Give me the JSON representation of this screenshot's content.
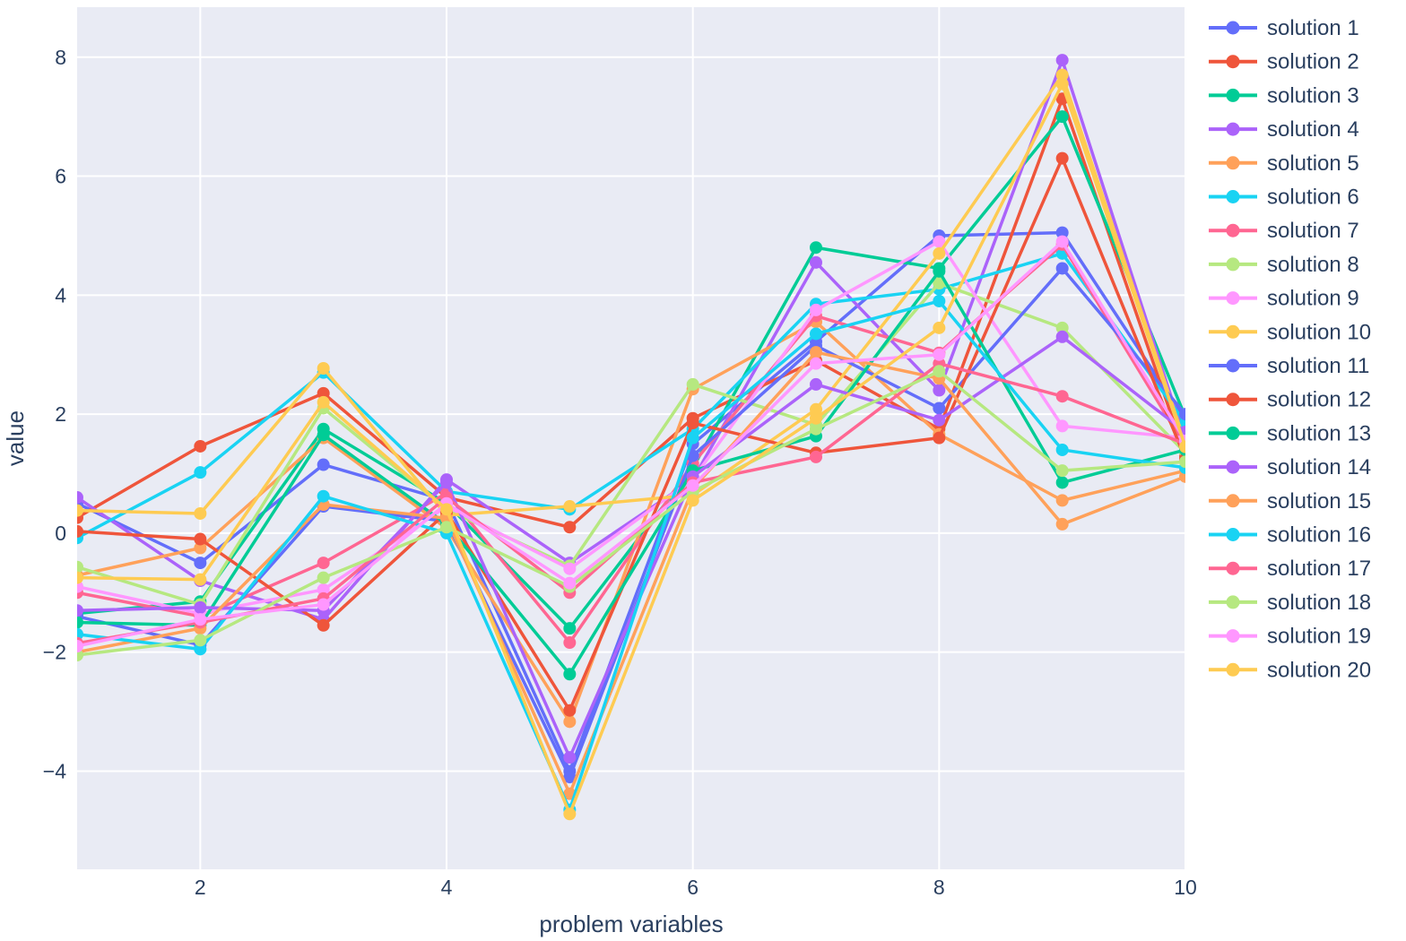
{
  "figure": {
    "background_color": "#ffffff",
    "plot_background": "#E9EBF4",
    "grid_color": "#FFFFFF",
    "text_color": "#2a3f5f",
    "xaxis": {
      "title": "problem variables",
      "tick_labels": [
        "2",
        "4",
        "6",
        "8",
        "10"
      ],
      "tick_values": [
        2,
        4,
        6,
        8,
        10
      ]
    },
    "yaxis": {
      "title": "value",
      "tick_labels": [
        "−4",
        "−2",
        "0",
        "2",
        "4",
        "6",
        "8"
      ],
      "tick_values": [
        -4,
        -2,
        0,
        2,
        4,
        6,
        8
      ]
    }
  },
  "chart_data": {
    "type": "line",
    "title": "",
    "xlabel": "problem variables",
    "ylabel": "value",
    "x": [
      1,
      2,
      3,
      4,
      5,
      6,
      7,
      8,
      9,
      10
    ],
    "xlim": [
      1,
      10
    ],
    "ylim": [
      -5.65,
      8.84
    ],
    "grid": true,
    "legend_position": "right",
    "marker": "circle",
    "series": [
      {
        "name": "solution 1",
        "color": "#636EFA",
        "values": [
          0.5,
          -0.5,
          1.15,
          0.55,
          -4.0,
          1.5,
          3.22,
          5.0,
          5.05,
          1.9
        ]
      },
      {
        "name": "solution 2",
        "color": "#EF553B",
        "values": [
          0.26,
          1.46,
          2.35,
          0.6,
          0.1,
          1.93,
          2.9,
          1.75,
          7.3,
          1.3
        ]
      },
      {
        "name": "solution 3",
        "color": "#00CC96",
        "values": [
          -1.35,
          -1.15,
          1.75,
          0.5,
          -1.6,
          1.1,
          4.8,
          4.45,
          7.0,
          1.95
        ]
      },
      {
        "name": "solution 4",
        "color": "#AB63FA",
        "values": [
          0.6,
          -0.8,
          -1.45,
          0.9,
          -0.5,
          0.9,
          4.55,
          2.4,
          7.95,
          1.55
        ]
      },
      {
        "name": "solution 5",
        "color": "#FFA15A",
        "values": [
          -0.71,
          -0.25,
          1.6,
          0.08,
          -3.17,
          2.42,
          3.55,
          1.66,
          0.55,
          1.05
        ]
      },
      {
        "name": "solution 6",
        "color": "#19D3F3",
        "values": [
          -0.08,
          1.02,
          2.7,
          0.7,
          0.4,
          1.75,
          3.85,
          4.1,
          4.7,
          1.85
        ]
      },
      {
        "name": "solution 7",
        "color": "#FF6692",
        "values": [
          -1.0,
          -1.4,
          -0.5,
          0.67,
          -1.84,
          1.17,
          3.65,
          3.03,
          4.85,
          1.45
        ]
      },
      {
        "name": "solution 8",
        "color": "#B6E880",
        "values": [
          -0.57,
          -1.2,
          2.1,
          0.4,
          -0.55,
          2.5,
          1.82,
          4.2,
          3.45,
          1.35
        ]
      },
      {
        "name": "solution 9",
        "color": "#FF97FF",
        "values": [
          -0.9,
          -1.35,
          -0.95,
          0.45,
          -0.6,
          0.91,
          3.75,
          4.9,
          1.8,
          1.6
        ]
      },
      {
        "name": "solution 10",
        "color": "#FECB52",
        "values": [
          0.38,
          0.33,
          2.77,
          0.3,
          0.45,
          0.64,
          2.08,
          4.7,
          7.7,
          1.5
        ]
      },
      {
        "name": "solution 11",
        "color": "#636EFA",
        "values": [
          -1.4,
          -1.88,
          0.45,
          0.2,
          -4.1,
          1.3,
          3.15,
          2.1,
          4.45,
          2.0
        ]
      },
      {
        "name": "solution 12",
        "color": "#EF553B",
        "values": [
          0.03,
          -0.1,
          -1.55,
          0.35,
          -2.98,
          1.85,
          1.35,
          1.6,
          6.3,
          1.25
        ]
      },
      {
        "name": "solution 13",
        "color": "#00CC96",
        "values": [
          -1.5,
          -1.55,
          1.65,
          0.15,
          -2.37,
          1.05,
          1.63,
          4.4,
          0.85,
          1.4
        ]
      },
      {
        "name": "solution 14",
        "color": "#AB63FA",
        "values": [
          -1.3,
          -1.25,
          -1.3,
          0.85,
          -3.77,
          0.95,
          2.5,
          1.9,
          3.3,
          1.7
        ]
      },
      {
        "name": "solution 15",
        "color": "#FFA15A",
        "values": [
          -2.0,
          -1.6,
          0.48,
          0.25,
          -4.38,
          0.75,
          3.04,
          2.6,
          0.15,
          0.95
        ]
      },
      {
        "name": "solution 16",
        "color": "#19D3F3",
        "values": [
          -1.7,
          -1.95,
          0.62,
          0.0,
          -4.65,
          1.6,
          3.35,
          3.9,
          1.4,
          1.1
        ]
      },
      {
        "name": "solution 17",
        "color": "#FF6692",
        "values": [
          -1.85,
          -1.5,
          -1.1,
          0.6,
          -1.0,
          0.85,
          1.28,
          2.85,
          2.3,
          1.5
        ]
      },
      {
        "name": "solution 18",
        "color": "#B6E880",
        "values": [
          -2.05,
          -1.8,
          -0.75,
          0.1,
          -0.9,
          0.7,
          1.75,
          2.72,
          1.05,
          1.2
        ]
      },
      {
        "name": "solution 19",
        "color": "#FF97FF",
        "values": [
          -1.9,
          -1.45,
          -1.2,
          0.5,
          -0.84,
          0.8,
          2.85,
          3.0,
          4.9,
          1.55
        ]
      },
      {
        "name": "solution 20",
        "color": "#FECB52",
        "values": [
          -0.75,
          -0.78,
          2.2,
          0.4,
          -4.72,
          0.55,
          1.93,
          3.45,
          7.55,
          1.45
        ]
      }
    ]
  }
}
